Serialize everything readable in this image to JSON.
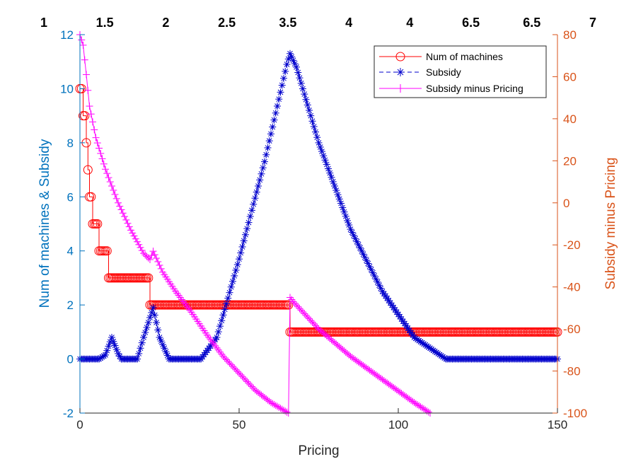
{
  "chart_data": {
    "type": "line",
    "title": "",
    "xlabel": "Pricing",
    "ylabel_left": "Num of machines & Subsidy",
    "ylabel_right": "Subsidy minus Pricing",
    "xlim": [
      0,
      150
    ],
    "ylim_left": [
      -2,
      12
    ],
    "ylim_right": [
      -100,
      80
    ],
    "x_ticks": [
      "0",
      "50",
      "100",
      "150"
    ],
    "y_left_ticks": [
      "-2",
      "0",
      "2",
      "4",
      "6",
      "8",
      "10",
      "12"
    ],
    "y_right_ticks": [
      "-100",
      "-80",
      "-60",
      "-40",
      "-20",
      "0",
      "20",
      "40",
      "60",
      "80"
    ],
    "top_labels": [
      "1",
      "1.5",
      "2",
      "2.5",
      "3.5",
      "4",
      "4",
      "6.5",
      "6.5",
      "7"
    ],
    "legend": {
      "position": "top-right",
      "entries": [
        "Num of machines",
        "Subsidy",
        "Subsidy minus Pricing"
      ]
    },
    "colors": {
      "left_axis": "#0072BD",
      "right_axis": "#D95319",
      "machines": "#FF0000",
      "subsidy": "#0000CC",
      "minus": "#FF00FF"
    },
    "series": [
      {
        "name": "Num of machines",
        "axis": "left",
        "marker": "circle",
        "steps": [
          {
            "x_from": 0,
            "x_to": 1,
            "value": 10
          },
          {
            "x_from": 1,
            "x_to": 2,
            "value": 9
          },
          {
            "x_from": 2,
            "x_to": 2.5,
            "value": 8
          },
          {
            "x_from": 2.5,
            "x_to": 3,
            "value": 7
          },
          {
            "x_from": 3,
            "x_to": 4,
            "value": 6
          },
          {
            "x_from": 4,
            "x_to": 6,
            "value": 5
          },
          {
            "x_from": 6,
            "x_to": 9,
            "value": 4
          },
          {
            "x_from": 9,
            "x_to": 22,
            "value": 3
          },
          {
            "x_from": 22,
            "x_to": 66,
            "value": 2
          },
          {
            "x_from": 66,
            "x_to": 150,
            "value": 1
          }
        ]
      },
      {
        "name": "Subsidy",
        "axis": "left",
        "marker": "asterisk",
        "points": [
          [
            0,
            0
          ],
          [
            6,
            0
          ],
          [
            8,
            0.15
          ],
          [
            10,
            0.8
          ],
          [
            12,
            0.2
          ],
          [
            13,
            0
          ],
          [
            18,
            0
          ],
          [
            20,
            0.8
          ],
          [
            23,
            1.9
          ],
          [
            25,
            0.8
          ],
          [
            28,
            0
          ],
          [
            38,
            0
          ],
          [
            43,
            0.8
          ],
          [
            50,
            3.7
          ],
          [
            58,
            7.3
          ],
          [
            65,
            10.9
          ],
          [
            66,
            11.3
          ],
          [
            68,
            10.8
          ],
          [
            75,
            8
          ],
          [
            85,
            4.8
          ],
          [
            95,
            2.5
          ],
          [
            105,
            0.8
          ],
          [
            115,
            0
          ],
          [
            150,
            0
          ]
        ]
      },
      {
        "name": "Subsidy minus Pricing",
        "axis": "right",
        "marker": "plus",
        "points": [
          [
            0,
            80
          ],
          [
            1,
            75
          ],
          [
            2,
            61
          ],
          [
            3,
            46
          ],
          [
            5,
            31
          ],
          [
            8,
            16
          ],
          [
            12,
            0
          ],
          [
            16,
            -13
          ],
          [
            20,
            -24
          ],
          [
            22,
            -27
          ],
          [
            23,
            -23
          ],
          [
            26,
            -33
          ],
          [
            30,
            -42
          ],
          [
            35,
            -52
          ],
          [
            40,
            -63
          ],
          [
            45,
            -73
          ],
          [
            50,
            -81
          ],
          [
            55,
            -89
          ],
          [
            60,
            -95
          ],
          [
            65.5,
            -100
          ],
          [
            66,
            -45
          ],
          [
            67,
            -47
          ],
          [
            75,
            -60
          ],
          [
            85,
            -73
          ],
          [
            95,
            -84
          ],
          [
            105,
            -95
          ],
          [
            110,
            -100
          ]
        ]
      }
    ]
  }
}
